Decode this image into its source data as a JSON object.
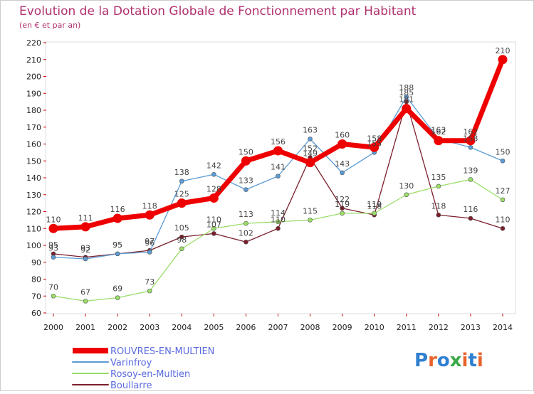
{
  "chart_data": {
    "type": "line",
    "title": "Evolution de la Dotation Globale de Fonctionnement par Habitant",
    "subtitle": "(en € et par an)",
    "xlabel": "",
    "ylabel": "",
    "ylim": [
      60,
      220
    ],
    "yticks": [
      60,
      70,
      80,
      90,
      100,
      110,
      120,
      130,
      140,
      150,
      160,
      170,
      180,
      190,
      200,
      210,
      220
    ],
    "categories": [
      "2000",
      "2001",
      "2002",
      "2003",
      "2004",
      "2005",
      "2006",
      "2007",
      "2008",
      "2009",
      "2010",
      "2011",
      "2012",
      "2013",
      "2014"
    ],
    "series": [
      {
        "name": "ROUVRES-EN-MULTIEN",
        "color": "#ee0000",
        "values": [
          110,
          111,
          116,
          118,
          125,
          128,
          150,
          156,
          149,
          160,
          158,
          181,
          162,
          162,
          210
        ],
        "labels": [
          "110",
          "111",
          "116",
          "118",
          "125",
          "128",
          "150",
          "156",
          "149",
          "160",
          "158",
          "181",
          "162",
          "162",
          "210"
        ]
      },
      {
        "name": "Varinfroy",
        "color": "#5b9bd5",
        "values": [
          93,
          92,
          95,
          96,
          138,
          142,
          133,
          141,
          163,
          143,
          155,
          188,
          163,
          158,
          150
        ],
        "labels": [
          "93",
          "92",
          "95",
          "96",
          "138",
          "142",
          "133",
          "141",
          "163",
          "143",
          "155",
          "188",
          "163",
          "158",
          "150"
        ]
      },
      {
        "name": "Rosoy-en-Multien",
        "color": "#99dd66",
        "values": [
          70,
          67,
          69,
          73,
          98,
          110,
          113,
          114,
          115,
          119,
          119,
          130,
          135,
          139,
          127
        ],
        "labels": [
          "70",
          "67",
          "69",
          "73",
          "98",
          "110",
          "113",
          "114",
          "115",
          "119",
          "119",
          "130",
          "135",
          "139",
          "127"
        ]
      },
      {
        "name": "Boullarre",
        "color": "#7a1f2a",
        "values": [
          95,
          93,
          95,
          97,
          105,
          107,
          102,
          110,
          152,
          122,
          118,
          185,
          118,
          116,
          110
        ],
        "labels": [
          "95",
          "93",
          "95",
          "97",
          "105",
          "107",
          "102",
          "110",
          "152",
          "122",
          "118",
          "185",
          "118",
          "116",
          "110"
        ]
      }
    ],
    "legend_position": "bottom-left",
    "grid": false
  },
  "branding": {
    "logo_text": "Proxiti",
    "letters": [
      "P",
      "r",
      "o",
      "x",
      "i",
      "t",
      "i"
    ],
    "letter_colors": [
      "#2f7fd0",
      "#e8632c",
      "#2f7fd0",
      "#3aa847",
      "#e8632c",
      "#2f7fd0",
      "#e8632c"
    ]
  }
}
